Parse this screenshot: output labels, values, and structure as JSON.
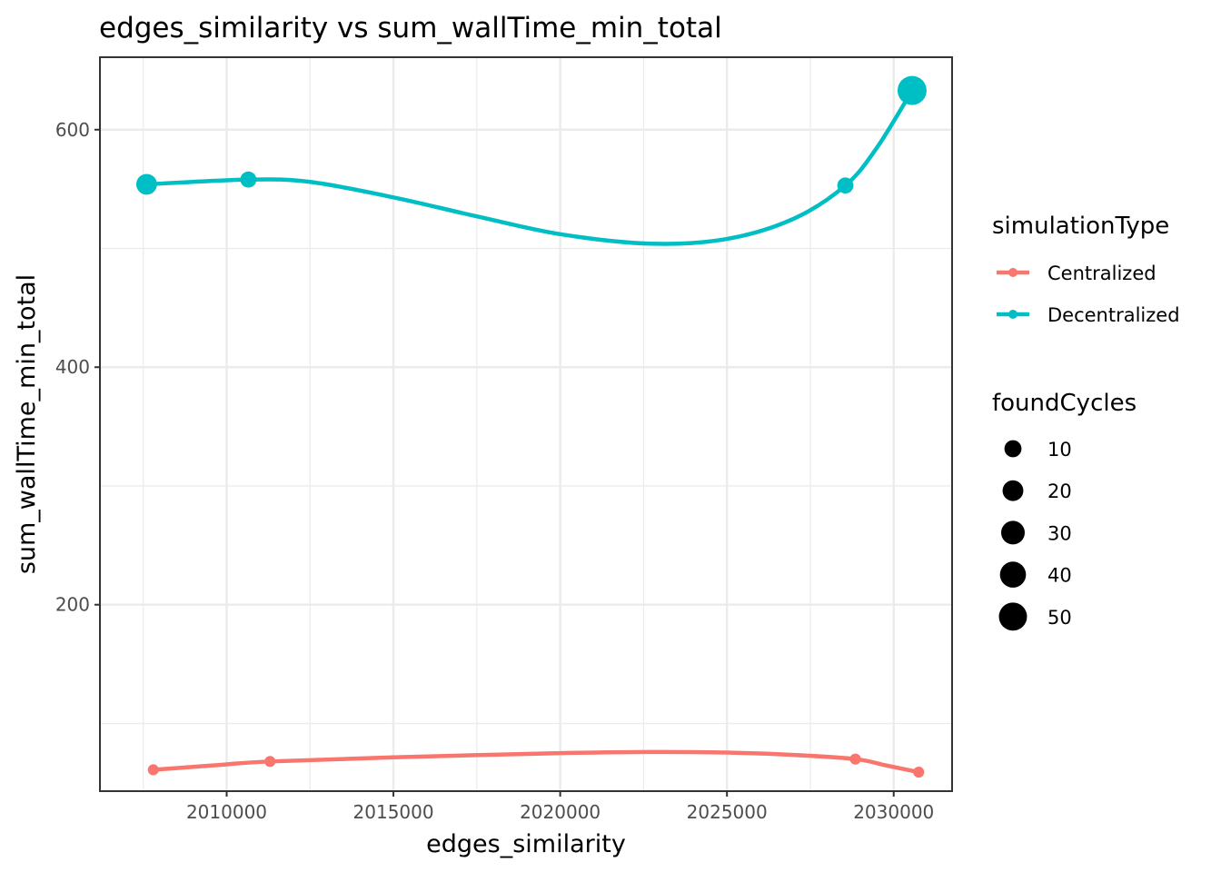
{
  "chart_data": {
    "type": "line",
    "title": "edges_similarity  vs  sum_wallTime_min_total",
    "xlabel": "edges_similarity",
    "ylabel": "sum_wallTime_min_total",
    "xlim": [
      2006200,
      2031750
    ],
    "ylim": [
      43,
      661
    ],
    "x_ticks": [
      2010000,
      2015000,
      2020000,
      2025000,
      2030000
    ],
    "x_tick_labels": [
      "2010000",
      "2015000",
      "2020000",
      "2025000",
      "2030000"
    ],
    "y_ticks": [
      200,
      400,
      600
    ],
    "y_tick_labels": [
      "200",
      "400",
      "600"
    ],
    "grid": true,
    "legend_position": "right",
    "series": [
      {
        "name": "Centralized",
        "color": "#F8766D",
        "points": [
          {
            "x": 2007800,
            "y": 61,
            "foundCycles": 1
          },
          {
            "x": 2011300,
            "y": 68,
            "foundCycles": 1
          },
          {
            "x": 2028850,
            "y": 70,
            "foundCycles": 1
          },
          {
            "x": 2030750,
            "y": 59,
            "foundCycles": 1
          }
        ],
        "smooth_curve": [
          {
            "x": 2007800,
            "y": 61
          },
          {
            "x": 2009500,
            "y": 64.5
          },
          {
            "x": 2011300,
            "y": 68
          },
          {
            "x": 2015000,
            "y": 71.5
          },
          {
            "x": 2020000,
            "y": 75
          },
          {
            "x": 2022700,
            "y": 76
          },
          {
            "x": 2025000,
            "y": 75.5
          },
          {
            "x": 2027000,
            "y": 73.5
          },
          {
            "x": 2028850,
            "y": 70
          },
          {
            "x": 2029800,
            "y": 64.5
          },
          {
            "x": 2030750,
            "y": 59
          }
        ]
      },
      {
        "name": "Decentralized",
        "color": "#00BFC4",
        "points": [
          {
            "x": 2007600,
            "y": 554,
            "foundCycles": 20
          },
          {
            "x": 2010650,
            "y": 558,
            "foundCycles": 8
          },
          {
            "x": 2028550,
            "y": 553,
            "foundCycles": 8
          },
          {
            "x": 2030550,
            "y": 633,
            "foundCycles": 55
          }
        ],
        "smooth_curve": [
          {
            "x": 2007600,
            "y": 554
          },
          {
            "x": 2010650,
            "y": 558
          },
          {
            "x": 2012500,
            "y": 556
          },
          {
            "x": 2015000,
            "y": 543
          },
          {
            "x": 2017500,
            "y": 527
          },
          {
            "x": 2020000,
            "y": 512
          },
          {
            "x": 2022700,
            "y": 504
          },
          {
            "x": 2025000,
            "y": 508
          },
          {
            "x": 2027000,
            "y": 525
          },
          {
            "x": 2028550,
            "y": 553
          },
          {
            "x": 2029500,
            "y": 585
          },
          {
            "x": 2030550,
            "y": 633
          }
        ]
      }
    ],
    "legends": {
      "color": {
        "title": "simulationType",
        "entries": [
          "Centralized",
          "Decentralized"
        ]
      },
      "size": {
        "title": "foundCycles",
        "values": [
          10,
          20,
          30,
          40,
          50
        ],
        "labels": [
          "10",
          "20",
          "30",
          "40",
          "50"
        ],
        "color": "#000000"
      }
    }
  }
}
